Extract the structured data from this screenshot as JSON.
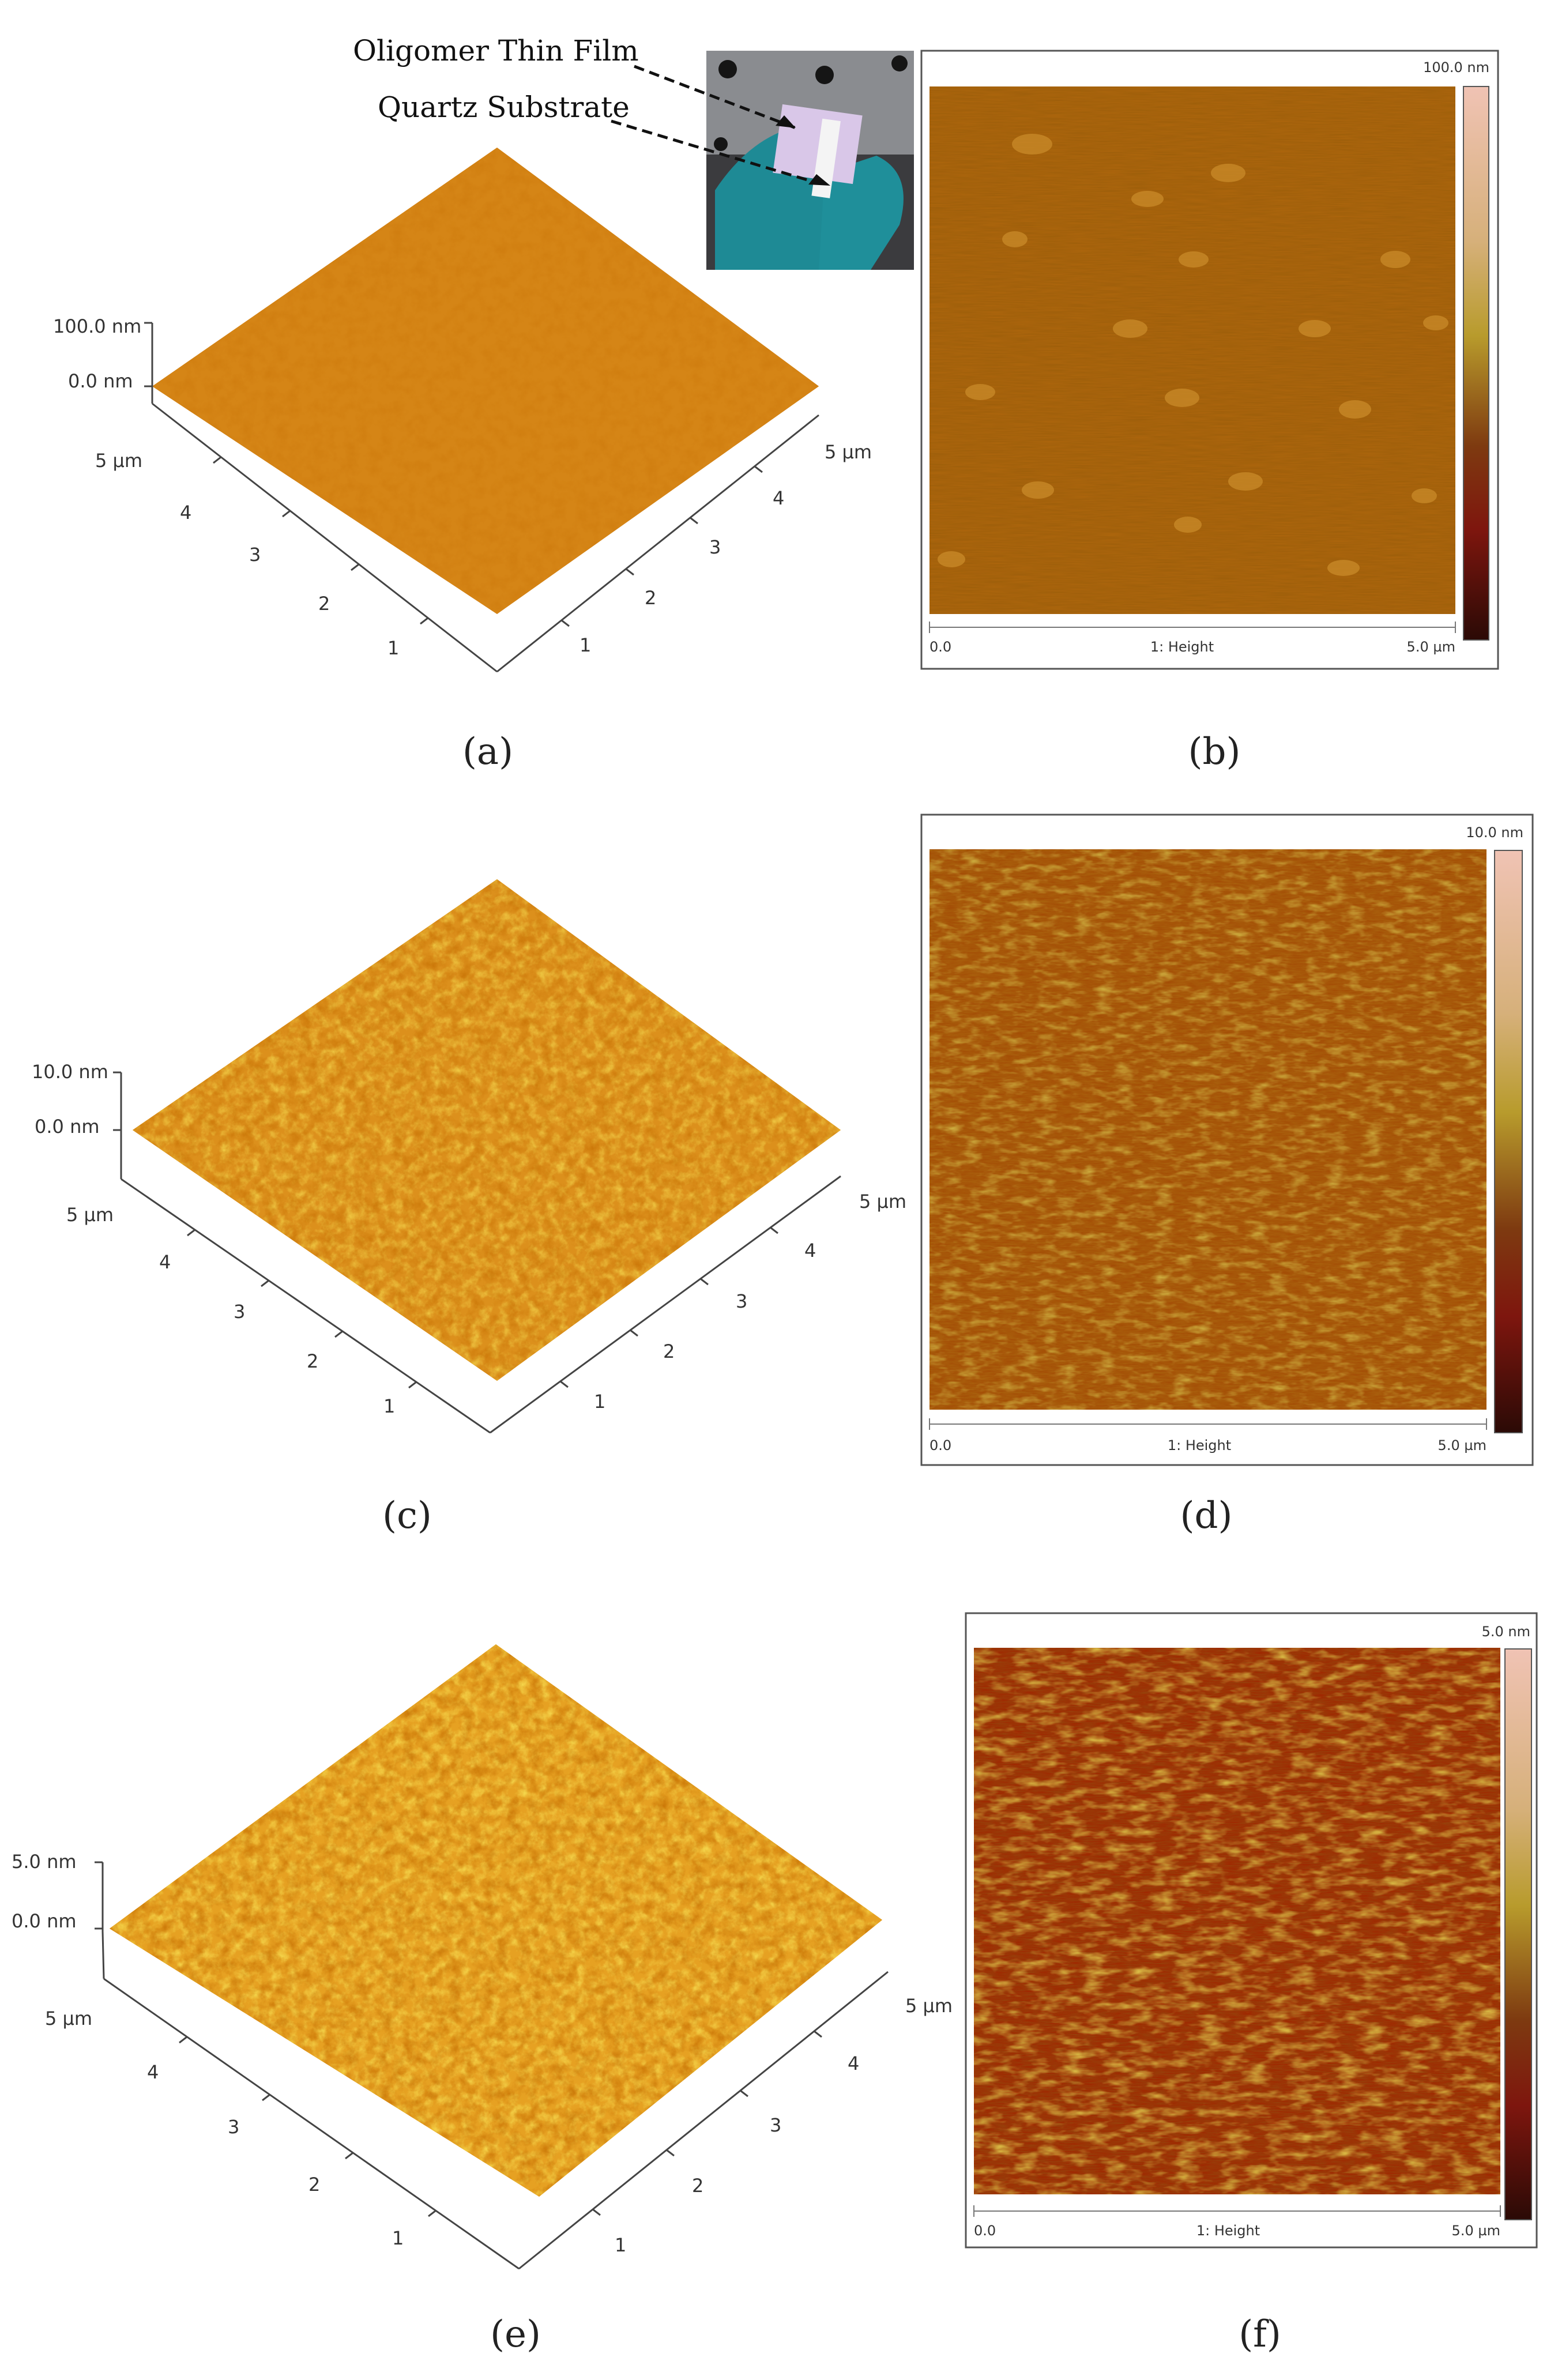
{
  "inset": {
    "film_label": "Oligomer Thin Film",
    "substrate_label": "Quartz Substrate"
  },
  "panels": [
    {
      "caption": "(a)",
      "view": "3d",
      "z_top": "100.0 nm",
      "z_zero": "0.0 nm",
      "left_axis": [
        "5 µm",
        "4",
        "3",
        "2",
        "1"
      ],
      "right_axis": [
        "5 µm",
        "4",
        "3",
        "2",
        "1"
      ],
      "roughness": "low"
    },
    {
      "caption": "(b)",
      "view": "2d",
      "scale_top": "100.0 nm",
      "x_start": "0.0",
      "x_label": "1: Height",
      "x_end": "5.0 µm",
      "roughness": "low"
    },
    {
      "caption": "(c)",
      "view": "3d",
      "z_top": "10.0 nm",
      "z_zero": "0.0 nm",
      "left_axis": [
        "5 µm",
        "4",
        "3",
        "2",
        "1"
      ],
      "right_axis": [
        "5 µm",
        "4",
        "3",
        "2",
        "1"
      ],
      "roughness": "medium"
    },
    {
      "caption": "(d)",
      "view": "2d",
      "scale_top": "10.0 nm",
      "x_start": "0.0",
      "x_label": "1: Height",
      "x_end": "5.0 µm",
      "roughness": "medium"
    },
    {
      "caption": "(e)",
      "view": "3d",
      "z_top": "5.0 nm",
      "z_zero": "0.0 nm",
      "left_axis": [
        "5 µm",
        "4",
        "3",
        "2",
        "1"
      ],
      "right_axis": [
        "5 µm",
        "4",
        "3",
        "2",
        "1"
      ],
      "roughness": "high"
    },
    {
      "caption": "(f)",
      "view": "2d",
      "scale_top": "5.0 nm",
      "x_start": "0.0",
      "x_label": "1: Height",
      "x_end": "5.0 µm",
      "roughness": "high"
    }
  ],
  "colors": {
    "surface_base": "#c8730f",
    "surface_light": "#e8a21f",
    "surface_dark": "#a2500b",
    "colorbar_top": "#f0c3b4",
    "colorbar_mid": "#b89b2c",
    "colorbar_low": "#7e160e",
    "colorbar_bottom": "#2b0a06",
    "glove": "#1e8a95",
    "film": "#d9c7e8"
  }
}
